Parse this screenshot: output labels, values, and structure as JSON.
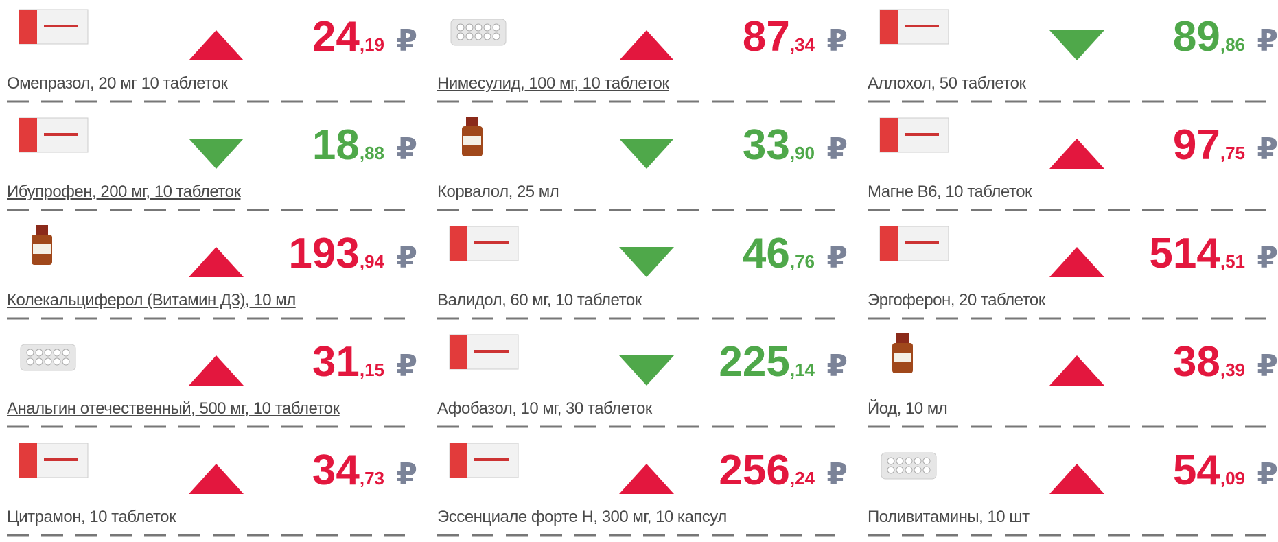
{
  "currency": "₽",
  "colors": {
    "up": "#e3173e",
    "down": "#4fa84a"
  },
  "items": [
    {
      "name": "Омепразол, 20 мг 10 таблеток",
      "price_whole": "24",
      "price_fraction": ",19",
      "direction": "up",
      "link": false
    },
    {
      "name": "Нимесулид, 100 мг, 10 таблеток",
      "price_whole": "87",
      "price_fraction": ",34",
      "direction": "up",
      "link": true
    },
    {
      "name": "Аллохол, 50 таблеток",
      "price_whole": "89",
      "price_fraction": ",86",
      "direction": "down",
      "link": false
    },
    {
      "name": "Ибупрофен, 200 мг, 10 таблеток",
      "price_whole": "18",
      "price_fraction": ",88",
      "direction": "down",
      "link": true
    },
    {
      "name": "Корвалол, 25 мл",
      "price_whole": "33",
      "price_fraction": ",90",
      "direction": "down",
      "link": false
    },
    {
      "name": "Магне B6, 10 таблеток",
      "price_whole": "97",
      "price_fraction": ",75",
      "direction": "up",
      "link": false
    },
    {
      "name": "Колекальциферол (Витамин Д3), 10 мл",
      "price_whole": "193",
      "price_fraction": ",94",
      "direction": "up",
      "link": true
    },
    {
      "name": "Валидол, 60 мг, 10 таблеток",
      "price_whole": "46",
      "price_fraction": ",76",
      "direction": "down",
      "link": false
    },
    {
      "name": "Эргоферон, 20 таблеток",
      "price_whole": "514",
      "price_fraction": ",51",
      "direction": "up",
      "link": false
    },
    {
      "name": "Анальгин отечественный, 500 мг, 10 таблеток",
      "price_whole": "31",
      "price_fraction": ",15",
      "direction": "up",
      "link": true
    },
    {
      "name": "Афобазол, 10 мг, 30 таблеток",
      "price_whole": "225",
      "price_fraction": ",14",
      "direction": "down",
      "link": false
    },
    {
      "name": "Йод, 10 мл",
      "price_whole": "38",
      "price_fraction": ",39",
      "direction": "up",
      "link": false
    },
    {
      "name": "Цитрамон, 10 таблеток",
      "price_whole": "34",
      "price_fraction": ",73",
      "direction": "up",
      "link": false
    },
    {
      "name": "Эссенциале форте Н, 300 мг, 10 капсул",
      "price_whole": "256",
      "price_fraction": ",24",
      "direction": "up",
      "link": false
    },
    {
      "name": "Поливитамины, 10 шт",
      "price_whole": "54",
      "price_fraction": ",09",
      "direction": "up",
      "link": false
    }
  ]
}
